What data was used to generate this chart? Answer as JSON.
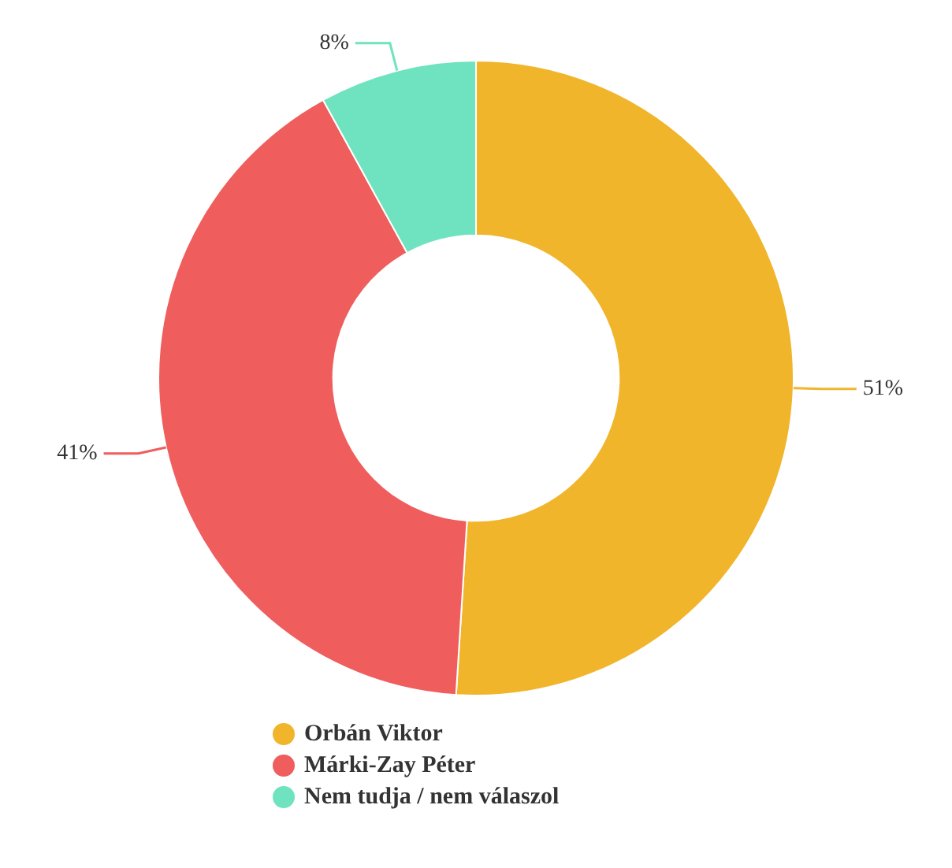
{
  "chart_data": {
    "type": "donut",
    "categories": [
      "Orbán Viktor",
      "Márki-Zay Péter",
      "Nem tudja / nem válaszol"
    ],
    "values": [
      51,
      41,
      8
    ],
    "colors": [
      "#f0b52b",
      "#ef5d5d",
      "#6fe3bf"
    ],
    "value_labels": [
      "51%",
      "41%",
      "8%"
    ],
    "legend": "bottom"
  }
}
